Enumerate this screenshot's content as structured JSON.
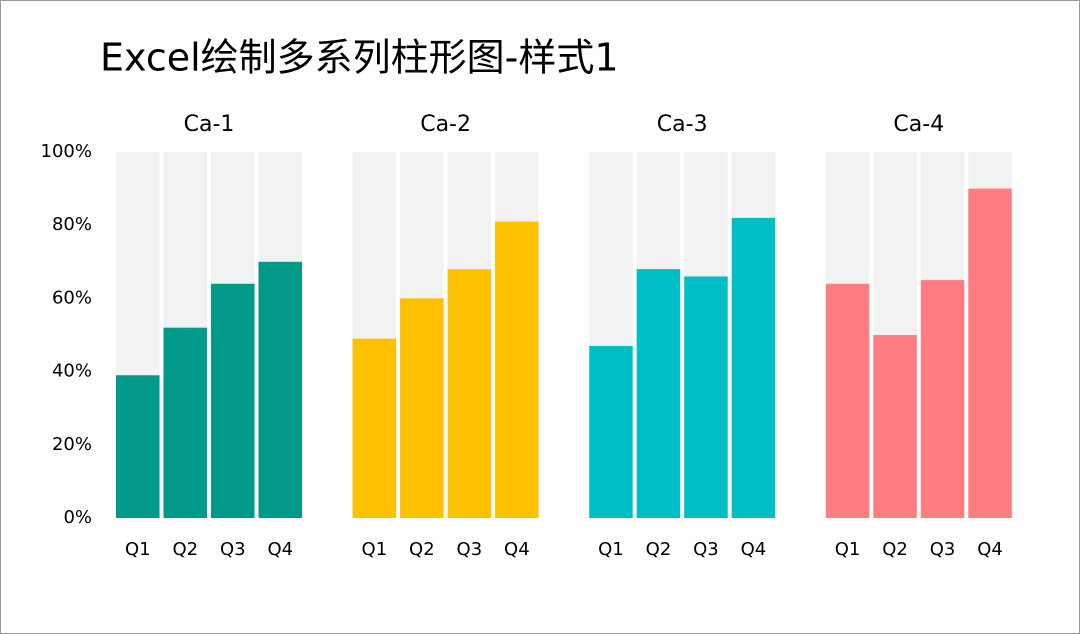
{
  "title": "Excel绘制多系列柱形图-样式1",
  "chart_data": [
    {
      "type": "bar",
      "title": "Ca-1",
      "categories": [
        "Q1",
        "Q2",
        "Q3",
        "Q4"
      ],
      "values": [
        39,
        52,
        64,
        70
      ],
      "color": "#00998a",
      "ylim": [
        0,
        100
      ],
      "yticks": [
        {
          "value": 0,
          "label": "0%"
        },
        {
          "value": 20,
          "label": "20%"
        },
        {
          "value": 40,
          "label": "40%"
        },
        {
          "value": 60,
          "label": "60%"
        },
        {
          "value": 80,
          "label": "80%"
        },
        {
          "value": 100,
          "label": "100%"
        }
      ]
    },
    {
      "type": "bar",
      "title": "Ca-2",
      "categories": [
        "Q1",
        "Q2",
        "Q3",
        "Q4"
      ],
      "values": [
        49,
        60,
        68,
        81
      ],
      "color": "#ffc000",
      "ylim": [
        0,
        100
      ]
    },
    {
      "type": "bar",
      "title": "Ca-3",
      "categories": [
        "Q1",
        "Q2",
        "Q3",
        "Q4"
      ],
      "values": [
        47,
        68,
        66,
        82
      ],
      "color": "#00bfc4",
      "ylim": [
        0,
        100
      ]
    },
    {
      "type": "bar",
      "title": "Ca-4",
      "categories": [
        "Q1",
        "Q2",
        "Q3",
        "Q4"
      ],
      "values": [
        64,
        50,
        65,
        90
      ],
      "color": "#ff7c80",
      "ylim": [
        0,
        100
      ]
    }
  ]
}
